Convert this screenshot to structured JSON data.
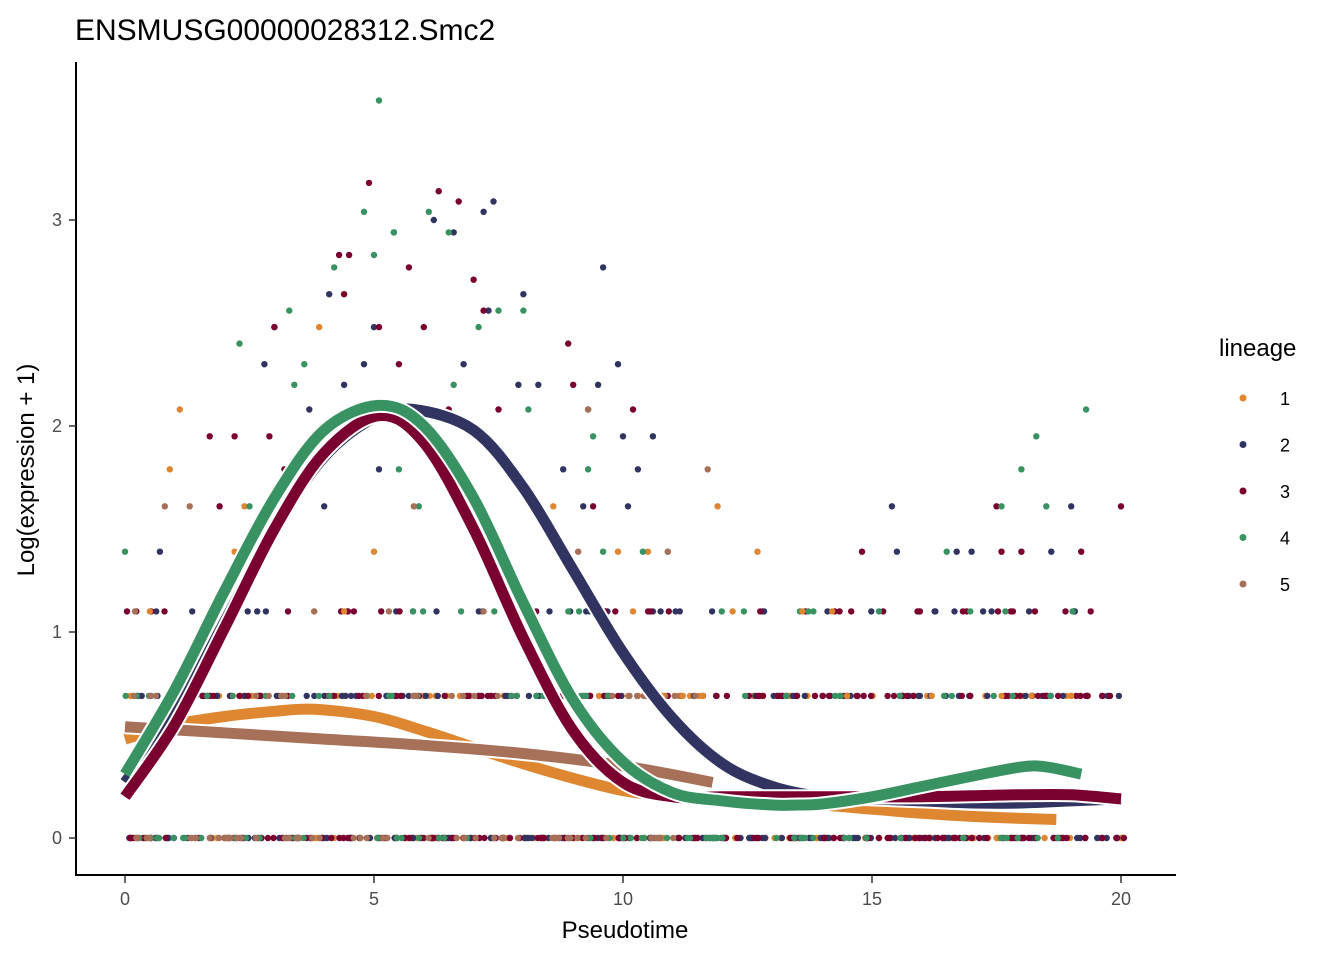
{
  "chart_data": {
    "type": "scatter",
    "title": "ENSMUSG00000028312.Smc2",
    "xlabel": "Pseudotime",
    "ylabel": "Log(expression + 1)",
    "xlim": [
      -1,
      21
    ],
    "ylim": [
      -0.18,
      3.75
    ],
    "xticks": [
      0,
      5,
      10,
      15,
      20
    ],
    "xtick_labels": [
      "0",
      "5",
      "10",
      "15",
      "20"
    ],
    "yticks": [
      0,
      1,
      2,
      3
    ],
    "ytick_labels": [
      "0",
      "1",
      "2",
      "3"
    ],
    "grid": false,
    "legend": {
      "title": "lineage",
      "position": "right",
      "entries": [
        {
          "label": "1",
          "color": "#DE8630"
        },
        {
          "label": "2",
          "color": "#313461"
        },
        {
          "label": "3",
          "color": "#7A0030"
        },
        {
          "label": "4",
          "color": "#389262"
        },
        {
          "label": "5",
          "color": "#A67059"
        }
      ]
    },
    "series": [
      {
        "name": "1",
        "color": "#DE8630",
        "curve": {
          "x": [
            0,
            1,
            2,
            3,
            3.8,
            5,
            6,
            7,
            8,
            9,
            10,
            11,
            12,
            13,
            14,
            15,
            16,
            17,
            18,
            18.7
          ],
          "y": [
            0.48,
            0.55,
            0.59,
            0.615,
            0.625,
            0.59,
            0.52,
            0.44,
            0.36,
            0.29,
            0.23,
            0.2,
            0.18,
            0.17,
            0.16,
            0.14,
            0.12,
            0.105,
            0.095,
            0.09
          ]
        },
        "points": [
          [
            1.1,
            2.08
          ],
          [
            0.9,
            1.79
          ],
          [
            11.9,
            1.61
          ],
          [
            3.9,
            2.48
          ],
          [
            2.4,
            1.61
          ],
          [
            5.0,
            1.39
          ],
          [
            2.2,
            1.39
          ],
          [
            12.7,
            1.39
          ],
          [
            9.9,
            1.39
          ],
          [
            10.5,
            1.39
          ],
          [
            3.8,
            1.1
          ],
          [
            4.4,
            1.1
          ],
          [
            0.5,
            1.1
          ],
          [
            1.8,
            1.1
          ],
          [
            10.2,
            1.1
          ],
          [
            12.2,
            1.1
          ],
          [
            14.2,
            1.1
          ],
          [
            13.6,
            1.1
          ],
          [
            10.8,
            0.69
          ],
          [
            11.2,
            0.69
          ],
          [
            11.6,
            0.69
          ],
          [
            14.5,
            0.69
          ],
          [
            16.2,
            0.69
          ],
          [
            17.6,
            0.69
          ],
          [
            18.2,
            0.69
          ],
          [
            19.0,
            0.69
          ],
          [
            7.6,
            1.39
          ],
          [
            6.7,
            1.61
          ],
          [
            8.6,
            1.61
          ]
        ],
        "dense_rows": [
          {
            "y": 0,
            "x_from": 0,
            "x_to": 20.1,
            "n": 120
          },
          {
            "y": 0.69,
            "x_from": 0,
            "x_to": 19.5,
            "n": 60
          }
        ]
      },
      {
        "name": "2",
        "color": "#313461",
        "curve": {
          "x": [
            0,
            1,
            2,
            3,
            4,
            5,
            5.8,
            7,
            8,
            9,
            10,
            11,
            12,
            13,
            14,
            15,
            16,
            17,
            18,
            19,
            20
          ],
          "y": [
            0.27,
            0.6,
            1.05,
            1.5,
            1.85,
            2.04,
            2.08,
            1.98,
            1.7,
            1.3,
            0.9,
            0.58,
            0.36,
            0.25,
            0.2,
            0.19,
            0.18,
            0.17,
            0.17,
            0.18,
            0.19
          ]
        },
        "points": [
          [
            5.0,
            2.48
          ],
          [
            6.2,
            3.0
          ],
          [
            7.2,
            3.04
          ],
          [
            7.4,
            3.09
          ],
          [
            9.6,
            2.77
          ],
          [
            6.6,
            2.94
          ],
          [
            5.4,
            2.94
          ],
          [
            4.1,
            2.64
          ],
          [
            3.0,
            2.48
          ],
          [
            2.8,
            2.3
          ],
          [
            4.4,
            2.2
          ],
          [
            7.3,
            2.56
          ],
          [
            8.0,
            2.64
          ],
          [
            9.5,
            2.2
          ],
          [
            9.3,
            2.08
          ],
          [
            9.9,
            2.3
          ],
          [
            10.0,
            1.95
          ],
          [
            10.6,
            1.95
          ],
          [
            10.3,
            1.79
          ],
          [
            8.8,
            1.79
          ],
          [
            15.4,
            1.61
          ],
          [
            19.0,
            1.61
          ],
          [
            16.7,
            1.39
          ],
          [
            17.0,
            1.39
          ],
          [
            18.6,
            1.39
          ],
          [
            15.5,
            1.39
          ],
          [
            5.3,
            2.08
          ],
          [
            3.7,
            2.08
          ],
          [
            4.8,
            2.3
          ],
          [
            6.8,
            2.3
          ],
          [
            7.9,
            2.2
          ],
          [
            8.3,
            2.2
          ],
          [
            5.1,
            1.79
          ],
          [
            4.0,
            1.61
          ],
          [
            0.7,
            1.39
          ],
          [
            2.9,
            1.61
          ],
          [
            9.2,
            1.61
          ],
          [
            10.1,
            1.61
          ]
        ],
        "dense_rows": [
          {
            "y": 0,
            "x_from": 0,
            "x_to": 20.1,
            "n": 140
          },
          {
            "y": 0.69,
            "x_from": 0,
            "x_to": 20.1,
            "n": 90
          },
          {
            "y": 1.1,
            "x_from": 0,
            "x_to": 19.8,
            "n": 40
          }
        ]
      },
      {
        "name": "3",
        "color": "#7A0030",
        "curve": {
          "x": [
            0,
            1,
            2,
            3,
            4,
            5.1,
            6,
            7,
            8,
            9,
            10,
            11,
            12,
            13,
            14,
            15,
            16,
            17,
            18,
            19,
            20
          ],
          "y": [
            0.2,
            0.55,
            1.02,
            1.5,
            1.87,
            2.05,
            1.92,
            1.5,
            0.97,
            0.52,
            0.27,
            0.2,
            0.2,
            0.2,
            0.2,
            0.2,
            0.2,
            0.205,
            0.21,
            0.21,
            0.19
          ]
        },
        "points": [
          [
            4.9,
            3.18
          ],
          [
            6.3,
            3.14
          ],
          [
            6.7,
            3.09
          ],
          [
            4.3,
            2.83
          ],
          [
            4.5,
            2.83
          ],
          [
            5.7,
            2.77
          ],
          [
            7.0,
            2.71
          ],
          [
            3.0,
            2.48
          ],
          [
            8.9,
            2.4
          ],
          [
            4.4,
            2.64
          ],
          [
            5.1,
            2.48
          ],
          [
            6.0,
            2.48
          ],
          [
            7.2,
            2.56
          ],
          [
            1.7,
            1.95
          ],
          [
            2.2,
            1.95
          ],
          [
            2.9,
            1.95
          ],
          [
            10.2,
            2.08
          ],
          [
            9.4,
            1.61
          ],
          [
            14.8,
            1.39
          ],
          [
            17.6,
            1.39
          ],
          [
            18.0,
            1.39
          ],
          [
            19.2,
            1.39
          ],
          [
            20.0,
            1.61
          ],
          [
            17.5,
            1.61
          ],
          [
            9.0,
            2.2
          ],
          [
            6.5,
            2.08
          ],
          [
            7.5,
            2.08
          ],
          [
            3.2,
            1.79
          ],
          [
            5.5,
            2.3
          ],
          [
            1.9,
            1.61
          ],
          [
            8.7,
            1.39
          ]
        ],
        "dense_rows": [
          {
            "y": 0,
            "x_from": 0,
            "x_to": 20.1,
            "n": 140
          },
          {
            "y": 0.69,
            "x_from": 0,
            "x_to": 20.0,
            "n": 90
          },
          {
            "y": 1.1,
            "x_from": 0,
            "x_to": 20.0,
            "n": 40
          }
        ]
      },
      {
        "name": "4",
        "color": "#389262",
        "curve": {
          "x": [
            0,
            1,
            2,
            3,
            4,
            5.1,
            6,
            7,
            8,
            9,
            10,
            11,
            12,
            13,
            13.5,
            14,
            15,
            16,
            17,
            18,
            18.5,
            19.2
          ],
          "y": [
            0.31,
            0.72,
            1.2,
            1.65,
            1.98,
            2.1,
            2.0,
            1.65,
            1.14,
            0.67,
            0.37,
            0.22,
            0.18,
            0.16,
            0.16,
            0.165,
            0.2,
            0.25,
            0.3,
            0.345,
            0.345,
            0.31
          ]
        },
        "points": [
          [
            5.1,
            3.58
          ],
          [
            4.8,
            3.04
          ],
          [
            6.1,
            3.04
          ],
          [
            6.5,
            2.94
          ],
          [
            5.4,
            2.94
          ],
          [
            5.0,
            2.83
          ],
          [
            4.2,
            2.77
          ],
          [
            3.3,
            2.56
          ],
          [
            2.3,
            2.4
          ],
          [
            7.1,
            2.48
          ],
          [
            7.5,
            2.56
          ],
          [
            8.0,
            2.56
          ],
          [
            8.1,
            2.08
          ],
          [
            3.4,
            2.2
          ],
          [
            9.3,
            1.79
          ],
          [
            9.4,
            1.95
          ],
          [
            18.3,
            1.95
          ],
          [
            18.0,
            1.79
          ],
          [
            19.3,
            2.08
          ],
          [
            16.5,
            1.39
          ],
          [
            17.6,
            1.61
          ],
          [
            18.5,
            1.61
          ],
          [
            0.0,
            1.39
          ],
          [
            2.5,
            1.61
          ],
          [
            3.6,
            2.3
          ],
          [
            6.6,
            2.2
          ],
          [
            5.9,
            1.61
          ],
          [
            5.5,
            1.79
          ],
          [
            9.6,
            1.39
          ],
          [
            10.4,
            1.39
          ],
          [
            10.9,
            1.39
          ]
        ],
        "dense_rows": [
          {
            "y": 0,
            "x_from": 0,
            "x_to": 20.0,
            "n": 60
          },
          {
            "y": 0.69,
            "x_from": 0,
            "x_to": 19.5,
            "n": 40
          },
          {
            "y": 1.1,
            "x_from": 2.5,
            "x_to": 19.4,
            "n": 15
          }
        ]
      },
      {
        "name": "5",
        "color": "#A67059",
        "curve": {
          "x": [
            0,
            2,
            4,
            6,
            8,
            10,
            11.8
          ],
          "y": [
            0.54,
            0.51,
            0.48,
            0.45,
            0.41,
            0.35,
            0.27
          ]
        },
        "points": [
          [
            11.7,
            1.79
          ],
          [
            5.8,
            1.61
          ],
          [
            0.8,
            1.61
          ],
          [
            1.3,
            1.61
          ],
          [
            9.1,
            1.39
          ],
          [
            10.9,
            1.39
          ],
          [
            9.3,
            2.08
          ],
          [
            5.3,
            1.1
          ],
          [
            7.2,
            1.1
          ],
          [
            1.7,
            1.1
          ],
          [
            3.8,
            1.1
          ],
          [
            0.2,
            1.1
          ]
        ],
        "dense_rows": [
          {
            "y": 0,
            "x_from": 0,
            "x_to": 11.5,
            "n": 50
          },
          {
            "y": 0.69,
            "x_from": 0,
            "x_to": 11.5,
            "n": 30
          }
        ]
      }
    ]
  }
}
